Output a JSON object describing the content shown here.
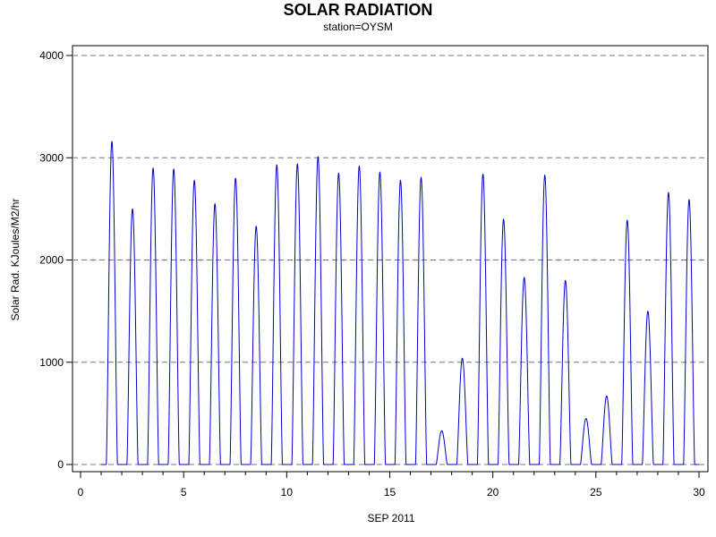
{
  "chart_data": {
    "type": "line",
    "title": "SOLAR RADIATION",
    "subtitle": "station=OYSM",
    "xlabel": "SEP 2011",
    "ylabel": "Solar Rad.  KJoules/M2/hr",
    "xlim": [
      0,
      30
    ],
    "ylim": [
      0,
      4000
    ],
    "x_ticks": [
      0,
      5,
      10,
      15,
      20,
      25,
      30
    ],
    "y_ticks": [
      0,
      1000,
      2000,
      3000,
      4000
    ],
    "grid": "horizontal dashed at y ticks",
    "series_color": "#0000cc",
    "daily_peaks": [
      {
        "day": 1,
        "peak": 3160
      },
      {
        "day": 2,
        "peak": 2500
      },
      {
        "day": 3,
        "peak": 2900
      },
      {
        "day": 4,
        "peak": 2890
      },
      {
        "day": 5,
        "peak": 2780
      },
      {
        "day": 6,
        "peak": 2550
      },
      {
        "day": 7,
        "peak": 2800
      },
      {
        "day": 8,
        "peak": 2330
      },
      {
        "day": 9,
        "peak": 2930
      },
      {
        "day": 10,
        "peak": 2940
      },
      {
        "day": 11,
        "peak": 3010
      },
      {
        "day": 12,
        "peak": 2850
      },
      {
        "day": 13,
        "peak": 2920
      },
      {
        "day": 14,
        "peak": 2860
      },
      {
        "day": 15,
        "peak": 2780
      },
      {
        "day": 16,
        "peak": 2810
      },
      {
        "day": 17,
        "peak": 330
      },
      {
        "day": 18,
        "peak": 1040
      },
      {
        "day": 19,
        "peak": 2840
      },
      {
        "day": 20,
        "peak": 2400
      },
      {
        "day": 21,
        "peak": 1830
      },
      {
        "day": 22,
        "peak": 2830
      },
      {
        "day": 23,
        "peak": 1800
      },
      {
        "day": 24,
        "peak": 450
      },
      {
        "day": 25,
        "peak": 670
      },
      {
        "day": 26,
        "peak": 2390
      },
      {
        "day": 27,
        "peak": 1500
      },
      {
        "day": 28,
        "peak": 2660
      },
      {
        "day": 29,
        "peak": 2590
      }
    ]
  }
}
